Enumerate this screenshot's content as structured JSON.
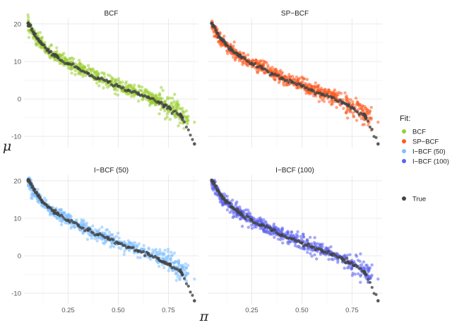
{
  "chart_data": {
    "type": "scatter",
    "layout": "facet-grid 2x2",
    "xlabel": "π",
    "ylabel": "μ",
    "xlim": [
      0.03,
      0.9
    ],
    "ylim": [
      -13,
      21.5
    ],
    "x_ticks": [
      0.25,
      0.5,
      0.75
    ],
    "x_tick_labels": [
      "0.25",
      "0.50",
      "0.75"
    ],
    "y_ticks": [
      -10,
      0,
      10,
      20
    ],
    "y_tick_labels": [
      "-10",
      "0",
      "10",
      "20"
    ],
    "grid": true,
    "legend": {
      "title": "Fit:",
      "placement": "right",
      "fit_entries": [
        {
          "label": "BCF",
          "color": "#9acd32"
        },
        {
          "label": "SP−BCF",
          "color": "#ff5a1f"
        },
        {
          "label": "I−BCF (50)",
          "color": "#7fbfff"
        },
        {
          "label": "I−BCF (100)",
          "color": "#5b63f0"
        }
      ],
      "true_entry": {
        "label": "True",
        "color": "#444444"
      }
    },
    "panels": [
      {
        "title": "BCF",
        "fit_color": "#9acd32"
      },
      {
        "title": "SP−BCF",
        "fit_color": "#ff5a1f"
      },
      {
        "title": "I−BCF (50)",
        "fit_color": "#7fbfff"
      },
      {
        "title": "I−BCF (100)",
        "fit_color": "#5b63f0"
      }
    ],
    "true_series": {
      "name": "True",
      "color": "#444444",
      "points": [
        {
          "x": 0.05,
          "y": 20.2
        },
        {
          "x": 0.06,
          "y": 19.5
        },
        {
          "x": 0.08,
          "y": 17.5
        },
        {
          "x": 0.1,
          "y": 16.0
        },
        {
          "x": 0.12,
          "y": 14.6
        },
        {
          "x": 0.15,
          "y": 13.0
        },
        {
          "x": 0.18,
          "y": 11.8
        },
        {
          "x": 0.2,
          "y": 11.0
        },
        {
          "x": 0.25,
          "y": 9.4
        },
        {
          "x": 0.3,
          "y": 8.2
        },
        {
          "x": 0.35,
          "y": 6.8
        },
        {
          "x": 0.4,
          "y": 5.6
        },
        {
          "x": 0.45,
          "y": 4.5
        },
        {
          "x": 0.5,
          "y": 3.4
        },
        {
          "x": 0.55,
          "y": 2.3
        },
        {
          "x": 0.6,
          "y": 1.3
        },
        {
          "x": 0.65,
          "y": 0.4
        },
        {
          "x": 0.7,
          "y": -0.8
        },
        {
          "x": 0.73,
          "y": -1.7
        },
        {
          "x": 0.76,
          "y": -2.6
        },
        {
          "x": 0.81,
          "y": -4.2
        },
        {
          "x": 0.82,
          "y": -5.0
        },
        {
          "x": 0.88,
          "y": -12.0
        }
      ]
    },
    "fit_curve": {
      "description_free": true,
      "points": [
        {
          "x": 0.05,
          "y": 20.0
        },
        {
          "x": 0.08,
          "y": 17.0
        },
        {
          "x": 0.1,
          "y": 15.5
        },
        {
          "x": 0.15,
          "y": 12.8
        },
        {
          "x": 0.2,
          "y": 11.0
        },
        {
          "x": 0.25,
          "y": 9.5
        },
        {
          "x": 0.3,
          "y": 8.3
        },
        {
          "x": 0.35,
          "y": 7.0
        },
        {
          "x": 0.4,
          "y": 5.8
        },
        {
          "x": 0.45,
          "y": 4.7
        },
        {
          "x": 0.5,
          "y": 3.6
        },
        {
          "x": 0.55,
          "y": 2.6
        },
        {
          "x": 0.6,
          "y": 1.6
        },
        {
          "x": 0.65,
          "y": 0.6
        },
        {
          "x": 0.7,
          "y": -0.5
        },
        {
          "x": 0.75,
          "y": -2.0
        },
        {
          "x": 0.8,
          "y": -3.5
        },
        {
          "x": 0.85,
          "y": -5.5
        },
        {
          "x": 0.88,
          "y": -6.5
        }
      ],
      "spread": 0.9,
      "points_per_panel": 620
    }
  }
}
